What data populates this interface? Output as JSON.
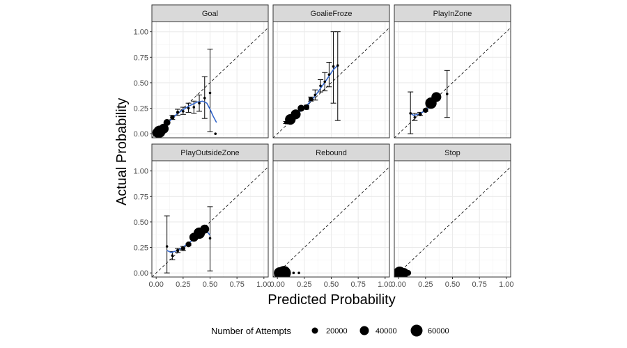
{
  "chart_data": {
    "type": "scatter",
    "xlabel": "Predicted Probability",
    "ylabel": "Actual Probability",
    "xlim": [
      -0.04,
      1.04
    ],
    "ylim": [
      -0.04,
      1.1
    ],
    "x_ticks": [
      "0.00",
      "0.25",
      "0.50",
      "0.75",
      "1.00"
    ],
    "y_ticks": [
      "0.00",
      "0.25",
      "0.50",
      "0.75",
      "1.00"
    ],
    "grid": true,
    "reference_line": "y = x (dashed)",
    "smooth_line_color": "#3366CC",
    "legend": {
      "title": "Number of Attempts",
      "placement": "bottom",
      "entries": [
        {
          "label": "20000",
          "value": 20000
        },
        {
          "label": "40000",
          "value": 40000
        },
        {
          "label": "60000",
          "value": 60000
        }
      ]
    },
    "panels": [
      {
        "title": "Goal",
        "points": [
          {
            "x": 0.01,
            "y": 0.01,
            "lo": 0.0,
            "hi": 0.02,
            "n": 30000
          },
          {
            "x": 0.03,
            "y": 0.02,
            "lo": 0.01,
            "hi": 0.03,
            "n": 45000
          },
          {
            "x": 0.07,
            "y": 0.05,
            "lo": 0.04,
            "hi": 0.06,
            "n": 30000
          },
          {
            "x": 0.1,
            "y": 0.11,
            "lo": 0.1,
            "hi": 0.12,
            "n": 15000
          },
          {
            "x": 0.15,
            "y": 0.16,
            "lo": 0.14,
            "hi": 0.18,
            "n": 6000
          },
          {
            "x": 0.2,
            "y": 0.21,
            "lo": 0.18,
            "hi": 0.24,
            "n": 3000
          },
          {
            "x": 0.25,
            "y": 0.22,
            "lo": 0.19,
            "hi": 0.26,
            "n": 2000
          },
          {
            "x": 0.3,
            "y": 0.25,
            "lo": 0.21,
            "hi": 0.3,
            "n": 1500
          },
          {
            "x": 0.35,
            "y": 0.26,
            "lo": 0.2,
            "hi": 0.32,
            "n": 800
          },
          {
            "x": 0.4,
            "y": 0.3,
            "lo": 0.22,
            "hi": 0.38,
            "n": 400
          },
          {
            "x": 0.45,
            "y": 0.35,
            "lo": 0.15,
            "hi": 0.56,
            "n": 100
          },
          {
            "x": 0.5,
            "y": 0.4,
            "lo": 0.02,
            "hi": 0.83,
            "n": 20
          },
          {
            "x": 0.55,
            "y": 0.0,
            "lo": 0.0,
            "hi": 0.0,
            "n": 5
          }
        ],
        "smooth": [
          [
            0.0,
            0.0
          ],
          [
            0.1,
            0.1
          ],
          [
            0.2,
            0.2
          ],
          [
            0.3,
            0.27
          ],
          [
            0.38,
            0.31
          ],
          [
            0.43,
            0.32
          ],
          [
            0.47,
            0.3
          ],
          [
            0.5,
            0.24
          ],
          [
            0.53,
            0.17
          ],
          [
            0.56,
            0.11
          ]
        ]
      },
      {
        "title": "GoalieFroze",
        "points": [
          {
            "x": 0.08,
            "y": 0.11,
            "lo": 0.1,
            "hi": 0.12,
            "n": 4000
          },
          {
            "x": 0.12,
            "y": 0.14,
            "lo": 0.13,
            "hi": 0.15,
            "n": 35000
          },
          {
            "x": 0.17,
            "y": 0.19,
            "lo": 0.18,
            "hi": 0.2,
            "n": 30000
          },
          {
            "x": 0.22,
            "y": 0.25,
            "lo": 0.24,
            "hi": 0.26,
            "n": 15000
          },
          {
            "x": 0.27,
            "y": 0.26,
            "lo": 0.24,
            "hi": 0.28,
            "n": 10000
          },
          {
            "x": 0.31,
            "y": 0.34,
            "lo": 0.32,
            "hi": 0.36,
            "n": 6000
          },
          {
            "x": 0.35,
            "y": 0.38,
            "lo": 0.33,
            "hi": 0.43,
            "n": 2000
          },
          {
            "x": 0.4,
            "y": 0.47,
            "lo": 0.41,
            "hi": 0.53,
            "n": 800
          },
          {
            "x": 0.44,
            "y": 0.51,
            "lo": 0.42,
            "hi": 0.6,
            "n": 300
          },
          {
            "x": 0.48,
            "y": 0.58,
            "lo": 0.46,
            "hi": 0.7,
            "n": 100
          },
          {
            "x": 0.52,
            "y": 0.66,
            "lo": 0.3,
            "hi": 1.0,
            "n": 10
          },
          {
            "x": 0.56,
            "y": 0.67,
            "lo": 0.13,
            "hi": 1.0,
            "n": 5
          }
        ],
        "smooth": [
          [
            0.07,
            0.1
          ],
          [
            0.15,
            0.17
          ],
          [
            0.25,
            0.25
          ],
          [
            0.35,
            0.37
          ],
          [
            0.45,
            0.52
          ],
          [
            0.52,
            0.63
          ],
          [
            0.56,
            0.67
          ]
        ]
      },
      {
        "title": "PlayInZone",
        "points": [
          {
            "x": 0.11,
            "y": 0.2,
            "lo": 0.0,
            "hi": 0.41,
            "n": 50
          },
          {
            "x": 0.15,
            "y": 0.16,
            "lo": 0.13,
            "hi": 0.2,
            "n": 2000
          },
          {
            "x": 0.2,
            "y": 0.19,
            "lo": 0.18,
            "hi": 0.21,
            "n": 4000
          },
          {
            "x": 0.25,
            "y": 0.23,
            "lo": 0.22,
            "hi": 0.24,
            "n": 8000
          },
          {
            "x": 0.3,
            "y": 0.3,
            "lo": 0.29,
            "hi": 0.31,
            "n": 40000
          },
          {
            "x": 0.35,
            "y": 0.36,
            "lo": 0.35,
            "hi": 0.37,
            "n": 30000
          },
          {
            "x": 0.45,
            "y": 0.39,
            "lo": 0.16,
            "hi": 0.62,
            "n": 20
          }
        ],
        "smooth": [
          [
            0.11,
            0.2
          ],
          [
            0.14,
            0.18
          ],
          [
            0.18,
            0.19
          ],
          [
            0.22,
            0.21
          ],
          [
            0.26,
            0.24
          ],
          [
            0.3,
            0.29
          ],
          [
            0.34,
            0.34
          ],
          [
            0.38,
            0.37
          ]
        ]
      },
      {
        "title": "PlayOutsideZone",
        "points": [
          {
            "x": 0.1,
            "y": 0.26,
            "lo": 0.0,
            "hi": 0.56,
            "n": 20
          },
          {
            "x": 0.15,
            "y": 0.17,
            "lo": 0.13,
            "hi": 0.21,
            "n": 1000
          },
          {
            "x": 0.2,
            "y": 0.22,
            "lo": 0.2,
            "hi": 0.24,
            "n": 3000
          },
          {
            "x": 0.25,
            "y": 0.24,
            "lo": 0.22,
            "hi": 0.26,
            "n": 6000
          },
          {
            "x": 0.3,
            "y": 0.28,
            "lo": 0.27,
            "hi": 0.29,
            "n": 10000
          },
          {
            "x": 0.35,
            "y": 0.35,
            "lo": 0.34,
            "hi": 0.36,
            "n": 25000
          },
          {
            "x": 0.4,
            "y": 0.39,
            "lo": 0.38,
            "hi": 0.4,
            "n": 40000
          },
          {
            "x": 0.45,
            "y": 0.43,
            "lo": 0.42,
            "hi": 0.44,
            "n": 25000
          },
          {
            "x": 0.5,
            "y": 0.34,
            "lo": 0.02,
            "hi": 0.65,
            "n": 20
          }
        ],
        "smooth": [
          [
            0.1,
            0.22
          ],
          [
            0.14,
            0.2
          ],
          [
            0.2,
            0.22
          ],
          [
            0.3,
            0.29
          ],
          [
            0.4,
            0.38
          ],
          [
            0.46,
            0.42
          ],
          [
            0.5,
            0.37
          ]
        ]
      },
      {
        "title": "Rebound",
        "points": [
          {
            "x": 0.02,
            "y": 0.0,
            "lo": 0.0,
            "hi": 0.0,
            "n": 40000
          },
          {
            "x": 0.06,
            "y": 0.0,
            "lo": 0.0,
            "hi": 0.0,
            "n": 60000
          },
          {
            "x": 0.1,
            "y": 0.0,
            "lo": 0.0,
            "hi": 0.0,
            "n": 8000
          },
          {
            "x": 0.15,
            "y": 0.0,
            "lo": 0.0,
            "hi": 0.0,
            "n": 2000
          },
          {
            "x": 0.2,
            "y": 0.0,
            "lo": 0.0,
            "hi": 0.0,
            "n": 500
          }
        ],
        "smooth": []
      },
      {
        "title": "Stop",
        "points": [
          {
            "x": 0.01,
            "y": 0.0,
            "lo": 0.0,
            "hi": 0.0,
            "n": 50000
          },
          {
            "x": 0.05,
            "y": 0.0,
            "lo": 0.0,
            "hi": 0.0,
            "n": 30000
          },
          {
            "x": 0.09,
            "y": 0.0,
            "lo": 0.0,
            "hi": 0.0,
            "n": 10000
          }
        ],
        "smooth": []
      }
    ]
  }
}
